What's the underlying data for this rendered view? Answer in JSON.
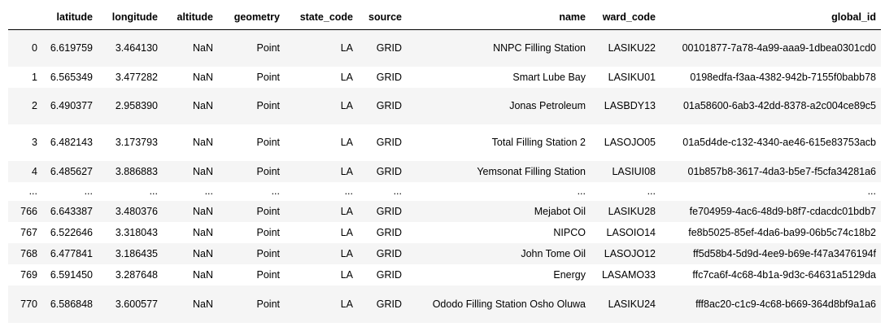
{
  "table": {
    "columns": [
      "",
      "latitude",
      "longitude",
      "altitude",
      "geometry",
      "state_code",
      "source",
      "name",
      "ward_code",
      "global_id"
    ],
    "rows": [
      {
        "index": "0",
        "latitude": "6.619759",
        "longitude": "3.464130",
        "altitude": "NaN",
        "geometry": "Point",
        "state_code": "LA",
        "source": "GRID",
        "name": "NNPC Filling Station",
        "ward_code": "LASIKU22",
        "global_id": "00101877-7a78-4a99-aaa9-1dbea0301cd0"
      },
      {
        "index": "1",
        "latitude": "6.565349",
        "longitude": "3.477282",
        "altitude": "NaN",
        "geometry": "Point",
        "state_code": "LA",
        "source": "GRID",
        "name": "Smart Lube Bay",
        "ward_code": "LASIKU01",
        "global_id": "0198edfa-f3aa-4382-942b-7155f0babb78"
      },
      {
        "index": "2",
        "latitude": "6.490377",
        "longitude": "2.958390",
        "altitude": "NaN",
        "geometry": "Point",
        "state_code": "LA",
        "source": "GRID",
        "name": "Jonas Petroleum",
        "ward_code": "LASBDY13",
        "global_id": "01a58600-6ab3-42dd-8378-a2c004ce89c5"
      },
      {
        "index": "3",
        "latitude": "6.482143",
        "longitude": "3.173793",
        "altitude": "NaN",
        "geometry": "Point",
        "state_code": "LA",
        "source": "GRID",
        "name": "Total Filling Station 2",
        "ward_code": "LASOJO05",
        "global_id": "01a5d4de-c132-4340-ae46-615e83753acb"
      },
      {
        "index": "4",
        "latitude": "6.485627",
        "longitude": "3.886883",
        "altitude": "NaN",
        "geometry": "Point",
        "state_code": "LA",
        "source": "GRID",
        "name": "Yemsonat Filling Station",
        "ward_code": "LASIUI08",
        "global_id": "01b857b8-3617-4da3-b5e7-f5cfa34281a6"
      },
      {
        "index": "...",
        "latitude": "...",
        "longitude": "...",
        "altitude": "...",
        "geometry": "...",
        "state_code": "...",
        "source": "...",
        "name": "...",
        "ward_code": "...",
        "global_id": "..."
      },
      {
        "index": "766",
        "latitude": "6.643387",
        "longitude": "3.480376",
        "altitude": "NaN",
        "geometry": "Point",
        "state_code": "LA",
        "source": "GRID",
        "name": "Mejabot Oil",
        "ward_code": "LASIKU28",
        "global_id": "fe704959-4ac6-48d9-b8f7-cdacdc01bdb7"
      },
      {
        "index": "767",
        "latitude": "6.522646",
        "longitude": "3.318043",
        "altitude": "NaN",
        "geometry": "Point",
        "state_code": "LA",
        "source": "GRID",
        "name": "NIPCO",
        "ward_code": "LASOIO14",
        "global_id": "fe8b5025-85ef-4da6-ba99-06b5c74c18b2"
      },
      {
        "index": "768",
        "latitude": "6.477841",
        "longitude": "3.186435",
        "altitude": "NaN",
        "geometry": "Point",
        "state_code": "LA",
        "source": "GRID",
        "name": "John Tome Oil",
        "ward_code": "LASOJO12",
        "global_id": "ff5d58b4-5d9d-4ee9-b69e-f47a3476194f"
      },
      {
        "index": "769",
        "latitude": "6.591450",
        "longitude": "3.287648",
        "altitude": "NaN",
        "geometry": "Point",
        "state_code": "LA",
        "source": "GRID",
        "name": "Energy",
        "ward_code": "LASAMO33",
        "global_id": "ffc7ca6f-4c68-4b1a-9d3c-64631a5129da"
      },
      {
        "index": "770",
        "latitude": "6.586848",
        "longitude": "3.600577",
        "altitude": "NaN",
        "geometry": "Point",
        "state_code": "LA",
        "source": "GRID",
        "name": "Ododo Filling Station Osho Oluwa",
        "ward_code": "LASIKU24",
        "global_id": "fff8ac20-c1c9-4c68-b669-364d8bf9a1a6"
      }
    ]
  }
}
